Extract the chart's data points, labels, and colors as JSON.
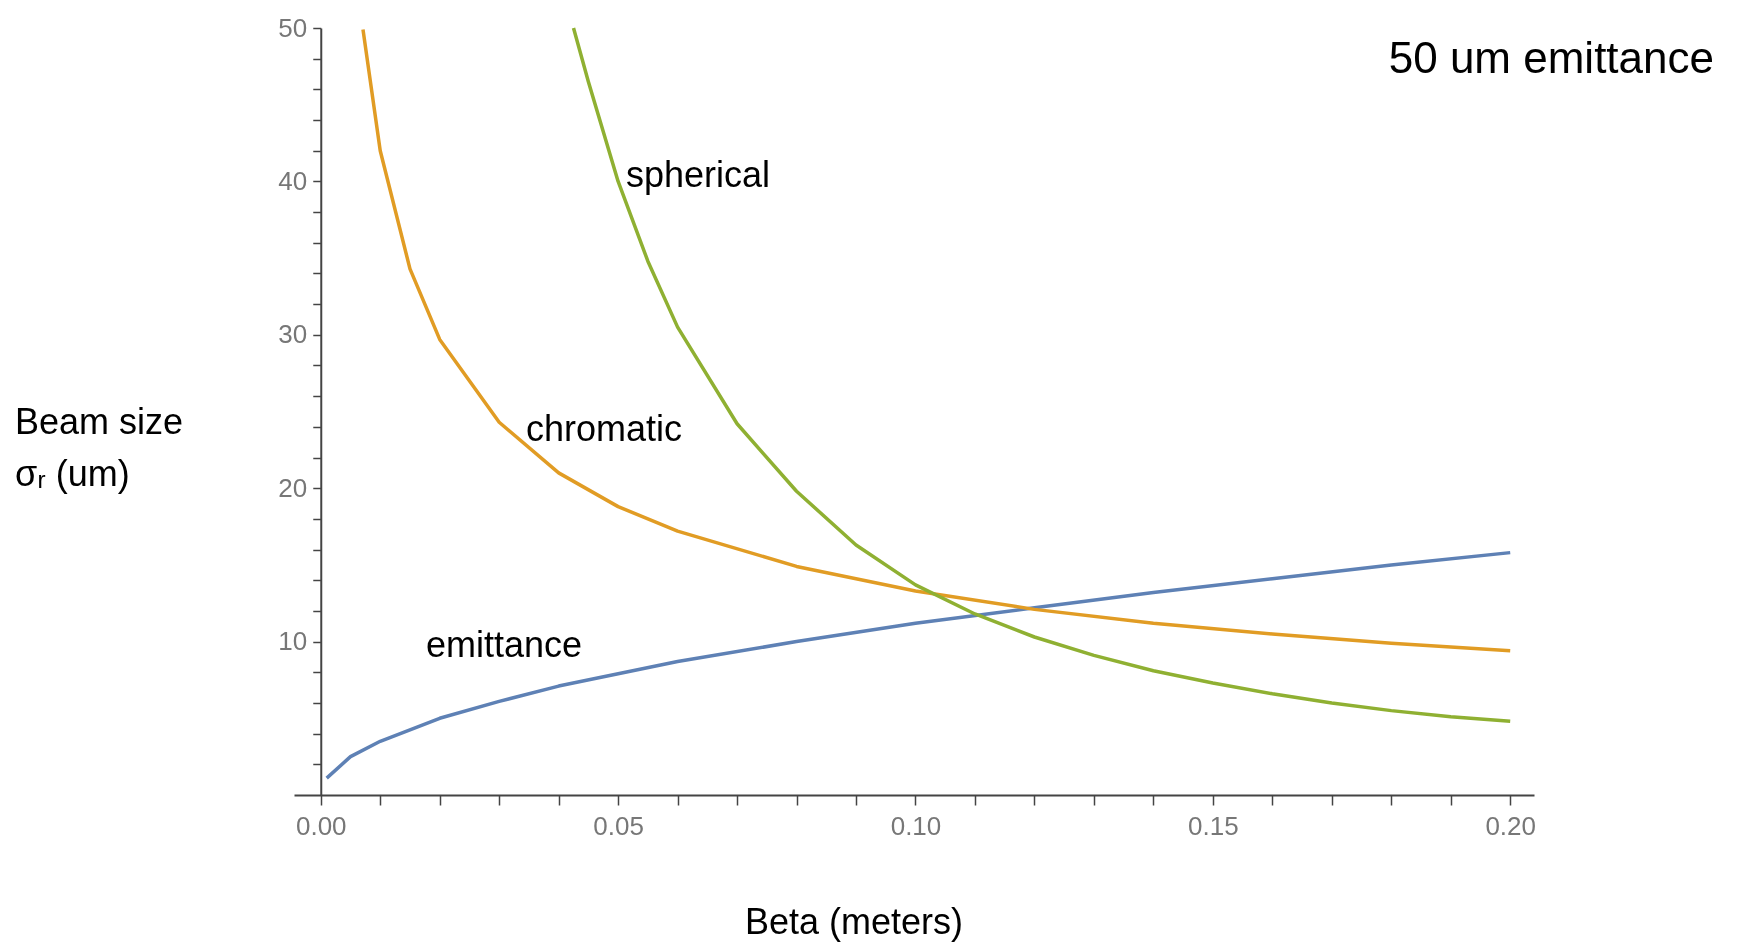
{
  "chart_data": {
    "type": "line",
    "title": "50 um emittance",
    "xlabel": "Beta (meters)",
    "ylabel": "Beam size\nσᵣ (um)",
    "xlim": [
      -0.0045,
      0.204
    ],
    "ylim": [
      0,
      50
    ],
    "xticks": [
      {
        "value": 0,
        "label": "0.00"
      },
      {
        "value": 0.01,
        "label": null
      },
      {
        "value": 0.02,
        "label": null
      },
      {
        "value": 0.03,
        "label": null
      },
      {
        "value": 0.04,
        "label": null
      },
      {
        "value": 0.05,
        "label": "0.05"
      },
      {
        "value": 0.06,
        "label": null
      },
      {
        "value": 0.07,
        "label": null
      },
      {
        "value": 0.08,
        "label": null
      },
      {
        "value": 0.09,
        "label": null
      },
      {
        "value": 0.1,
        "label": "0.10"
      },
      {
        "value": 0.11,
        "label": null
      },
      {
        "value": 0.12,
        "label": null
      },
      {
        "value": 0.13,
        "label": null
      },
      {
        "value": 0.14,
        "label": null
      },
      {
        "value": 0.15,
        "label": "0.15"
      },
      {
        "value": 0.16,
        "label": null
      },
      {
        "value": 0.17,
        "label": null
      },
      {
        "value": 0.18,
        "label": null
      },
      {
        "value": 0.19,
        "label": null
      },
      {
        "value": 0.2,
        "label": "0.20"
      }
    ],
    "yticks": [
      {
        "value": 2,
        "label": null
      },
      {
        "value": 4,
        "label": null
      },
      {
        "value": 6,
        "label": null
      },
      {
        "value": 8,
        "label": null
      },
      10,
      {
        "value": 12,
        "label": null
      },
      {
        "value": 14,
        "label": null
      },
      {
        "value": 16,
        "label": null
      },
      {
        "value": 18,
        "label": null
      },
      20,
      {
        "value": 22,
        "label": null
      },
      {
        "value": 24,
        "label": null
      },
      {
        "value": 26,
        "label": null
      },
      {
        "value": 28,
        "label": null
      },
      30,
      {
        "value": 32,
        "label": null
      },
      {
        "value": 34,
        "label": null
      },
      {
        "value": 36,
        "label": null
      },
      {
        "value": 38,
        "label": null
      },
      40,
      {
        "value": 42,
        "label": null
      },
      {
        "value": 44,
        "label": null
      },
      {
        "value": 46,
        "label": null
      },
      {
        "value": 48,
        "label": null
      },
      50
    ],
    "grid": false,
    "marker": "none",
    "line_style": "solid",
    "series": [
      {
        "color": "#5e81b5",
        "x": [
          0.001,
          0.005,
          0.01,
          0.02,
          0.03,
          0.04,
          0.05,
          0.06,
          0.08,
          0.1,
          0.12,
          0.14,
          0.16,
          0.18,
          0.2
        ],
        "values": [
          1.1,
          2.5,
          3.5,
          5.0,
          6.1,
          7.1,
          7.9,
          8.7,
          10.0,
          11.2,
          12.2,
          13.2,
          14.1,
          15.0,
          15.8
        ]
      },
      {
        "color": "#e19c24",
        "x": [
          0.0071,
          0.01,
          0.015,
          0.02,
          0.03,
          0.04,
          0.05,
          0.06,
          0.08,
          0.1,
          0.12,
          0.14,
          0.16,
          0.18,
          0.2
        ],
        "values": [
          49.9,
          42.0,
          34.3,
          29.7,
          24.3,
          21.0,
          18.8,
          17.2,
          14.9,
          13.3,
          12.1,
          11.2,
          10.5,
          9.9,
          9.4
        ]
      },
      {
        "color": "#8fb032",
        "x": [
          0.0425,
          0.045,
          0.05,
          0.055,
          0.06,
          0.07,
          0.08,
          0.09,
          0.1,
          0.11,
          0.12,
          0.13,
          0.14,
          0.15,
          0.16,
          0.17,
          0.18,
          0.19,
          0.2
        ],
        "values": [
          50,
          46.5,
          40,
          34.8,
          30.5,
          24.2,
          19.8,
          16.3,
          13.7,
          11.8,
          10.3,
          9.1,
          8.1,
          7.3,
          6.6,
          6.0,
          5.5,
          5.1,
          4.8
        ]
      }
    ],
    "annotations": [
      "spherical",
      "chromatic",
      "emittance"
    ]
  }
}
